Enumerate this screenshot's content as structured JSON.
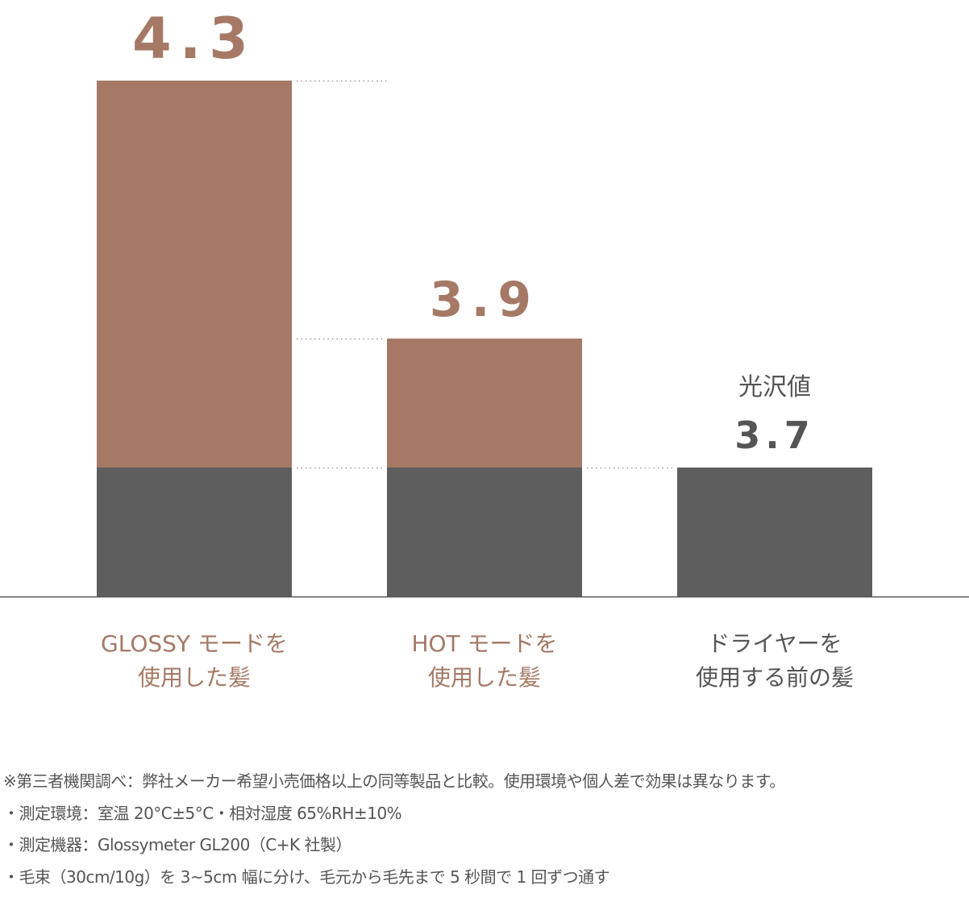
{
  "chart_data": {
    "type": "bar",
    "title": "",
    "ylabel": "光沢値",
    "xlabel": "",
    "ylim": [
      3.5,
      4.3
    ],
    "baseline_value": 3.7,
    "categories": [
      {
        "line1": "GLOSSY モードを",
        "line2": "使用した髪"
      },
      {
        "line1": "HOT モードを",
        "line2": "使用した髪"
      },
      {
        "line1": "ドライヤーを",
        "line2": "使用する前の髪"
      }
    ],
    "values": [
      4.3,
      3.9,
      3.7
    ],
    "value_labels": [
      "4.3",
      "3.9",
      "3.7"
    ],
    "value_label_caption": "光沢値",
    "grid": false,
    "colors": {
      "improvement": "#a57965",
      "base": "#5e5e5e",
      "highlight_text": "#a57965",
      "base_text": "#555555"
    }
  },
  "notes": [
    "※第三者機関調べ：弊社メーカー希望小売価格以上の同等製品と比較。使用環境や個人差で効果は異なります。",
    "・測定環境：室温 20°C±5°C・相対湿度 65%RH±10%",
    "・測定機器：Glossymeter GL200（C+K 社製）",
    "・毛束（30cm/10g）を 3~5cm 幅に分け、毛元から毛先まで 5 秒間で 1 回ずつ通す"
  ]
}
